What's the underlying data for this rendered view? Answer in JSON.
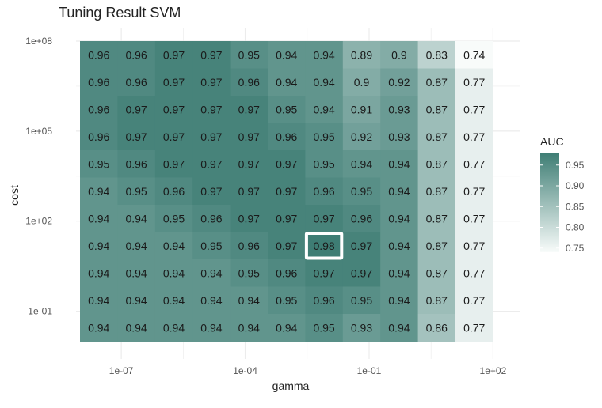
{
  "chart_data": {
    "type": "heatmap",
    "title": "Tuning Result SVM",
    "xlabel": "gamma",
    "ylabel": "cost",
    "x_tick_labels": [
      "1e-07",
      "1e-04",
      "1e-01",
      "1e+02"
    ],
    "y_tick_labels": [
      "1e+08",
      "1e+05",
      "1e+02",
      "1e-01"
    ],
    "x_log10_range": [
      -8,
      2
    ],
    "y_log10_range": [
      -2,
      8
    ],
    "legend": {
      "title": "AUC",
      "ticks": [
        "0.95",
        "0.90",
        "0.85",
        "0.80",
        "0.75"
      ],
      "placement": "right"
    },
    "color_scale": {
      "low": "#f8fbfa",
      "high": "#3e7d74",
      "min": 0.74,
      "max": 0.98
    },
    "grid": true,
    "highlight_cell": {
      "row": 7,
      "col": 6
    },
    "values": [
      [
        "0.96",
        "0.96",
        "0.97",
        "0.97",
        "0.95",
        "0.94",
        "0.94",
        "0.89",
        "0.9",
        "0.83",
        "0.74"
      ],
      [
        "0.96",
        "0.96",
        "0.97",
        "0.97",
        "0.96",
        "0.94",
        "0.94",
        "0.9",
        "0.92",
        "0.87",
        "0.77"
      ],
      [
        "0.96",
        "0.97",
        "0.97",
        "0.97",
        "0.97",
        "0.95",
        "0.94",
        "0.91",
        "0.93",
        "0.87",
        "0.77"
      ],
      [
        "0.96",
        "0.97",
        "0.97",
        "0.97",
        "0.97",
        "0.96",
        "0.95",
        "0.92",
        "0.93",
        "0.87",
        "0.77"
      ],
      [
        "0.95",
        "0.96",
        "0.97",
        "0.97",
        "0.97",
        "0.97",
        "0.95",
        "0.94",
        "0.94",
        "0.87",
        "0.77"
      ],
      [
        "0.94",
        "0.95",
        "0.96",
        "0.97",
        "0.97",
        "0.97",
        "0.96",
        "0.95",
        "0.94",
        "0.87",
        "0.77"
      ],
      [
        "0.94",
        "0.94",
        "0.95",
        "0.96",
        "0.97",
        "0.97",
        "0.97",
        "0.96",
        "0.94",
        "0.87",
        "0.77"
      ],
      [
        "0.94",
        "0.94",
        "0.94",
        "0.95",
        "0.96",
        "0.97",
        "0.98",
        "0.97",
        "0.94",
        "0.87",
        "0.77"
      ],
      [
        "0.94",
        "0.94",
        "0.94",
        "0.94",
        "0.95",
        "0.96",
        "0.97",
        "0.97",
        "0.94",
        "0.87",
        "0.77"
      ],
      [
        "0.94",
        "0.94",
        "0.94",
        "0.94",
        "0.94",
        "0.95",
        "0.96",
        "0.95",
        "0.94",
        "0.87",
        "0.77"
      ],
      [
        "0.94",
        "0.94",
        "0.94",
        "0.94",
        "0.94",
        "0.94",
        "0.95",
        "0.93",
        "0.94",
        "0.86",
        "0.77"
      ]
    ]
  }
}
